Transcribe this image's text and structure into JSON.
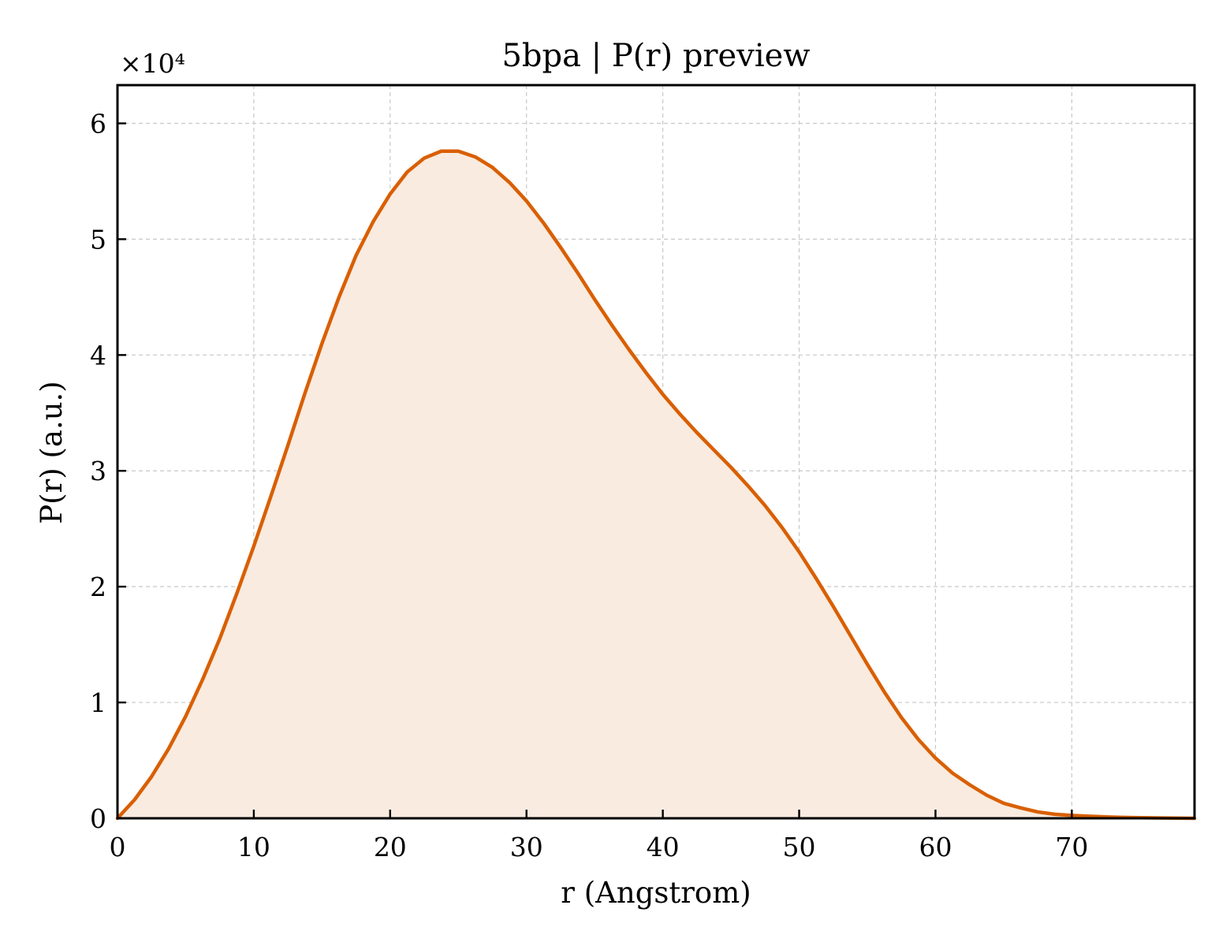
{
  "chart_data": {
    "type": "area",
    "title": "5bpa | P(r) preview",
    "xlabel": "r (Angstrom)",
    "ylabel": "P(r) (a.u.)",
    "y_multiplier_label": "×10⁴",
    "xlim": [
      0,
      79
    ],
    "ylim": [
      0,
      63300
    ],
    "x_ticks": [
      0,
      10,
      20,
      30,
      40,
      50,
      60,
      70
    ],
    "x_tick_labels": [
      "0",
      "10",
      "20",
      "30",
      "40",
      "50",
      "60",
      "70"
    ],
    "y_ticks": [
      0,
      10000,
      20000,
      30000,
      40000,
      50000,
      60000
    ],
    "y_tick_labels": [
      "0",
      "1",
      "2",
      "3",
      "4",
      "5",
      "6"
    ],
    "grid": true,
    "line_color": "#d95f02",
    "fill_color": "#f9ebe0",
    "series": [
      {
        "x": [
          0,
          1.25,
          2.5,
          3.75,
          5,
          6.25,
          7.5,
          8.75,
          10,
          11.25,
          12.5,
          13.75,
          15,
          16.25,
          17.5,
          18.75,
          20,
          21.25,
          22.5,
          23.75,
          25,
          26.25,
          27.5,
          28.75,
          30,
          31.25,
          32.5,
          33.75,
          35,
          36.25,
          37.5,
          38.75,
          40,
          41.25,
          42.5,
          43.75,
          45,
          46.25,
          47.5,
          48.75,
          50,
          51.25,
          52.5,
          53.75,
          55,
          56.25,
          57.5,
          58.75,
          60,
          61.25,
          62.5,
          63.75,
          65,
          66.25,
          67.5,
          68.75,
          70,
          71.25,
          72.5,
          73.75,
          75,
          76.25,
          77.5,
          79
        ],
        "y": [
          0,
          1600,
          3600,
          6000,
          8800,
          12000,
          15500,
          19400,
          23500,
          27800,
          32200,
          36700,
          41000,
          45000,
          48600,
          51500,
          53900,
          55800,
          57000,
          57600,
          57600,
          57100,
          56200,
          54900,
          53300,
          51400,
          49300,
          47100,
          44800,
          42600,
          40500,
          38500,
          36600,
          34900,
          33300,
          31800,
          30300,
          28700,
          27000,
          25100,
          23000,
          20700,
          18300,
          15800,
          13300,
          10900,
          8700,
          6800,
          5200,
          3900,
          2900,
          2000,
          1300,
          900,
          550,
          350,
          250,
          180,
          120,
          80,
          50,
          30,
          15,
          0
        ]
      }
    ]
  }
}
